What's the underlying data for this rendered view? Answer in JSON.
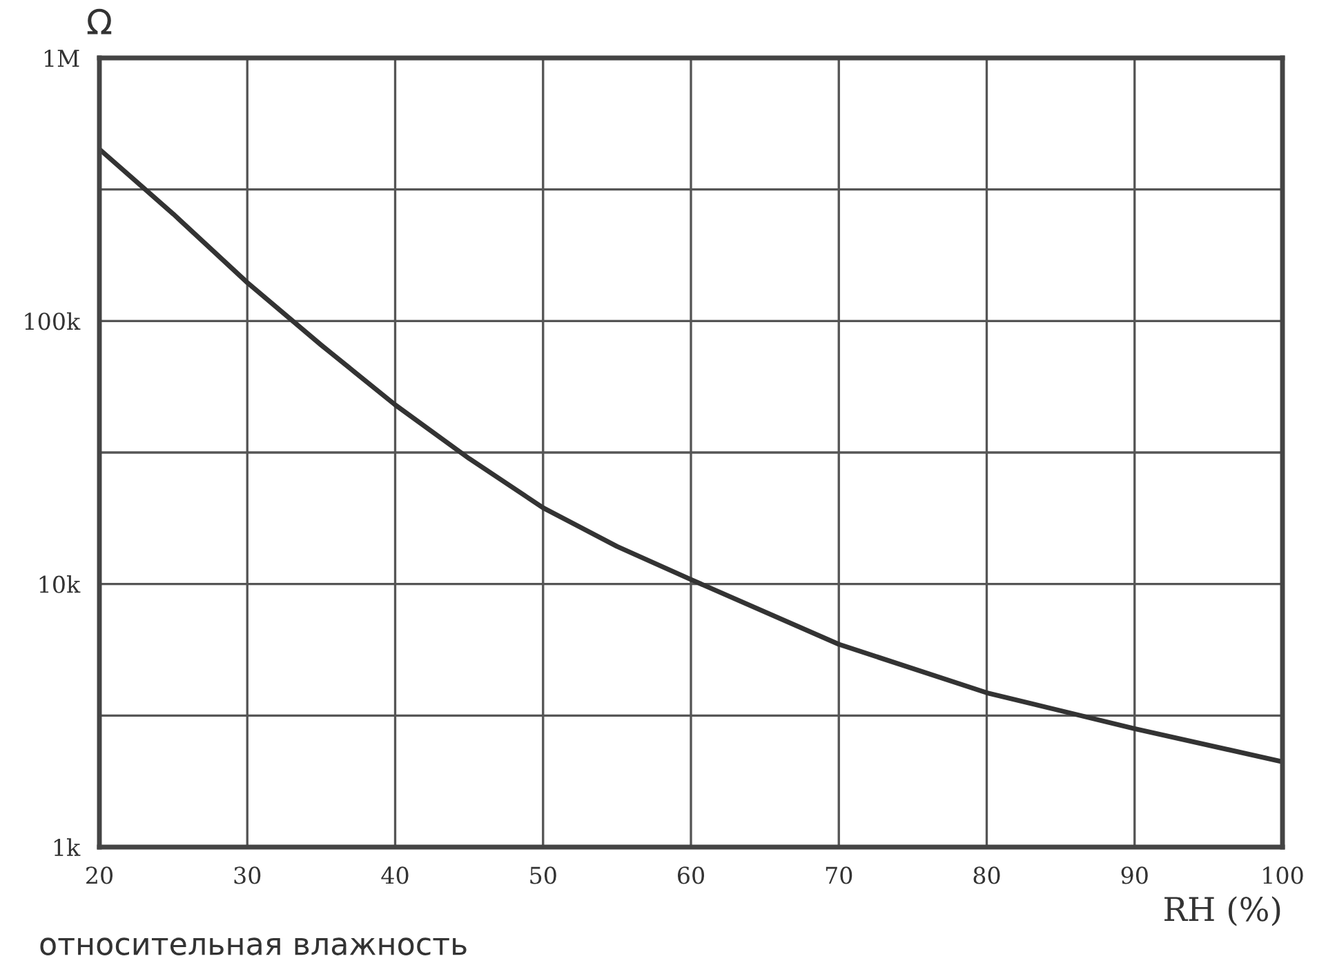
{
  "chart_data": {
    "type": "line",
    "ylabel": "Ω",
    "xlabel": "RH (%)",
    "annotations": [
      "относительная влажность"
    ],
    "x": [
      20,
      25,
      30,
      35,
      40,
      45,
      50,
      55,
      60,
      70,
      80,
      90,
      100
    ],
    "series": [
      {
        "color": "#333333",
        "values": [
          450000,
          255000,
          140000,
          81000,
          48000,
          30000,
          19500,
          13900,
          10400,
          5900,
          3860,
          2820,
          2110
        ]
      }
    ],
    "log": "y",
    "xlim": [
      20,
      100
    ],
    "xticks": [
      20,
      30,
      40,
      50,
      60,
      70,
      80,
      90,
      100
    ],
    "ylim": [
      1000,
      1000000
    ],
    "yticks": [
      {
        "value": 1000,
        "label": "1k"
      },
      {
        "value": 3162,
        "label": null
      },
      {
        "value": 10000,
        "label": "10k"
      },
      {
        "value": 31623,
        "label": null
      },
      {
        "value": 100000,
        "label": "100k"
      },
      {
        "value": 316228,
        "label": null
      },
      {
        "value": 1000000,
        "label": "1M"
      }
    ],
    "grid": true,
    "marker": "none",
    "line_style": "solid"
  }
}
